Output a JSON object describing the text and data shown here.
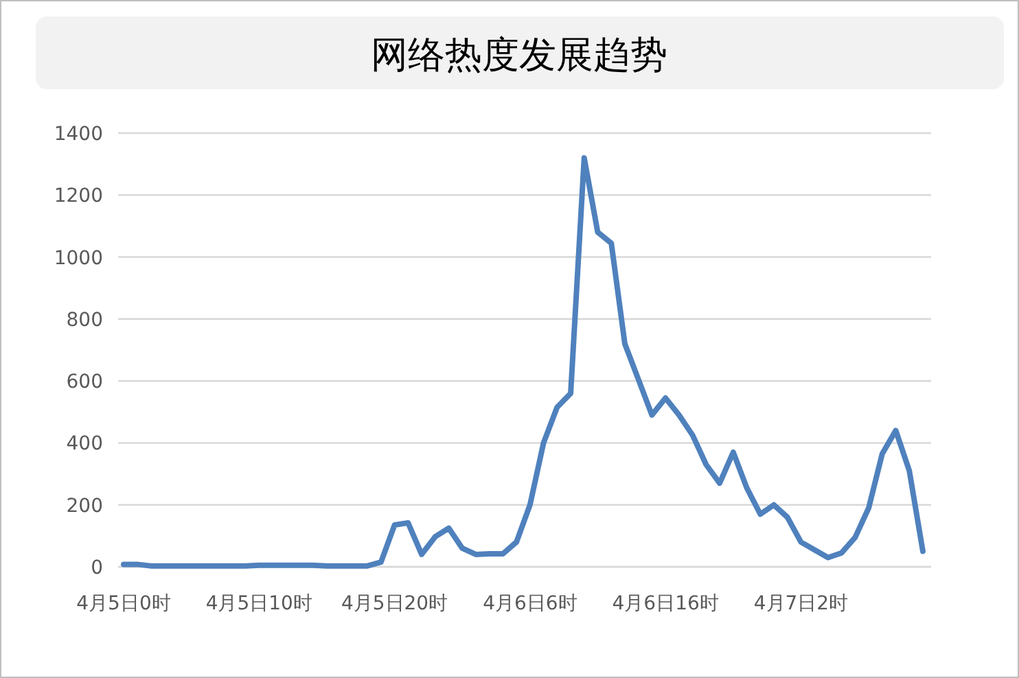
{
  "chart_data": {
    "type": "line",
    "title": "网络热度发展趋势",
    "categories": [
      "4月5日0时",
      null,
      null,
      null,
      null,
      null,
      null,
      null,
      null,
      null,
      "4月5日10时",
      null,
      null,
      null,
      null,
      null,
      null,
      null,
      null,
      null,
      "4月5日20时",
      null,
      null,
      null,
      null,
      null,
      null,
      null,
      null,
      null,
      "4月6日6时",
      null,
      null,
      null,
      null,
      null,
      null,
      null,
      null,
      null,
      "4月6日16时",
      null,
      null,
      null,
      null,
      null,
      null,
      null,
      null,
      null,
      "4月7日2时",
      null,
      null,
      null,
      null,
      null,
      null,
      null,
      null,
      null
    ],
    "series": [
      {
        "color": "#4f81bd",
        "values": [
          8,
          8,
          3,
          3,
          3,
          3,
          3,
          3,
          3,
          3,
          5,
          5,
          5,
          5,
          5,
          3,
          3,
          3,
          3,
          15,
          135,
          142,
          40,
          97,
          125,
          60,
          40,
          42,
          42,
          80,
          200,
          400,
          515,
          560,
          1320,
          1080,
          1045,
          720,
          605,
          490,
          545,
          490,
          425,
          330,
          270,
          370,
          255,
          170,
          200,
          160,
          80,
          55,
          30,
          45,
          95,
          190,
          365,
          440,
          310,
          50
        ]
      }
    ],
    "ylim": [
      0,
      1400
    ],
    "yticks": [
      0,
      200,
      400,
      600,
      800,
      1000,
      1200,
      1400
    ],
    "grid": "y"
  }
}
